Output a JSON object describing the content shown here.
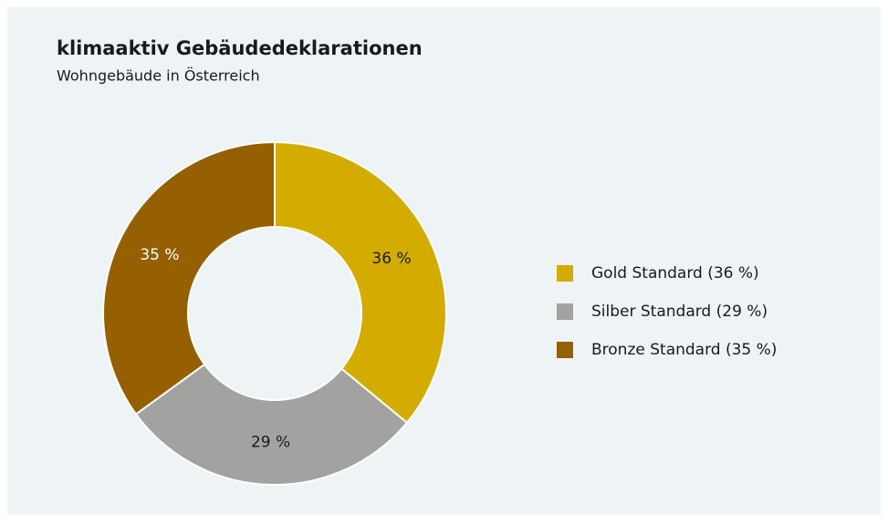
{
  "chart_data": {
    "type": "donut",
    "title": "klimaaktiv Gebäudedeklarationen",
    "subtitle": "Wohngebäude in Österreich",
    "categories": [
      "Gold Standard (36 %)",
      "Silber Standard (29 %)",
      "Bronze Standard (35 %)"
    ],
    "values": [
      36,
      29,
      35
    ],
    "value_labels": [
      "36 %",
      "29 %",
      "35 %"
    ],
    "colors": [
      "#d4ac00",
      "#a2a3a1",
      "#966000"
    ],
    "legend": "right"
  }
}
